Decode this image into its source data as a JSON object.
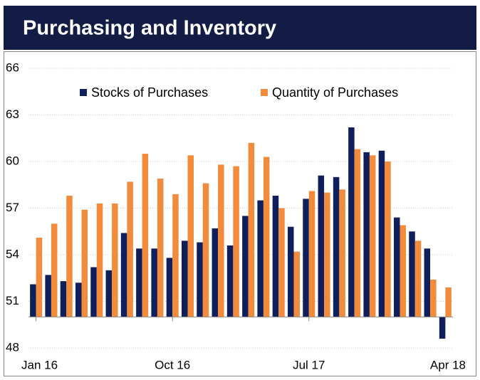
{
  "chart_data": {
    "type": "bar",
    "title": "Purchasing and Inventory",
    "categories": [
      "Jan 16",
      null,
      null,
      null,
      null,
      null,
      null,
      null,
      null,
      "Oct 16",
      null,
      null,
      null,
      null,
      null,
      null,
      null,
      null,
      "Jul 17",
      null,
      null,
      null,
      null,
      null,
      null,
      null,
      null,
      "Apr 18"
    ],
    "series": [
      {
        "name": "Stocks of Purchases",
        "color": "#0f1f5c",
        "values": [
          52.1,
          52.7,
          52.3,
          52.2,
          53.2,
          53.0,
          55.4,
          54.4,
          54.4,
          53.8,
          54.9,
          54.8,
          55.7,
          54.6,
          56.5,
          57.5,
          57.8,
          55.8,
          57.6,
          59.1,
          59.0,
          62.2,
          60.6,
          60.7,
          56.4,
          55.5,
          54.4,
          48.6
        ]
      },
      {
        "name": "Quantity of Purchases",
        "color": "#f28c3c",
        "values": [
          55.1,
          56.0,
          57.8,
          56.9,
          57.3,
          57.3,
          58.7,
          60.5,
          58.9,
          57.9,
          60.4,
          58.6,
          59.8,
          59.7,
          61.2,
          60.3,
          57.0,
          54.2,
          58.1,
          58.0,
          58.2,
          60.8,
          60.4,
          60.0,
          55.9,
          54.9,
          52.4,
          51.9
        ]
      }
    ],
    "ylim": [
      48,
      66
    ],
    "yticks": [
      48,
      51,
      54,
      57,
      60,
      63,
      66
    ],
    "x_axis_at": 50,
    "grid": true,
    "legend": "top"
  }
}
